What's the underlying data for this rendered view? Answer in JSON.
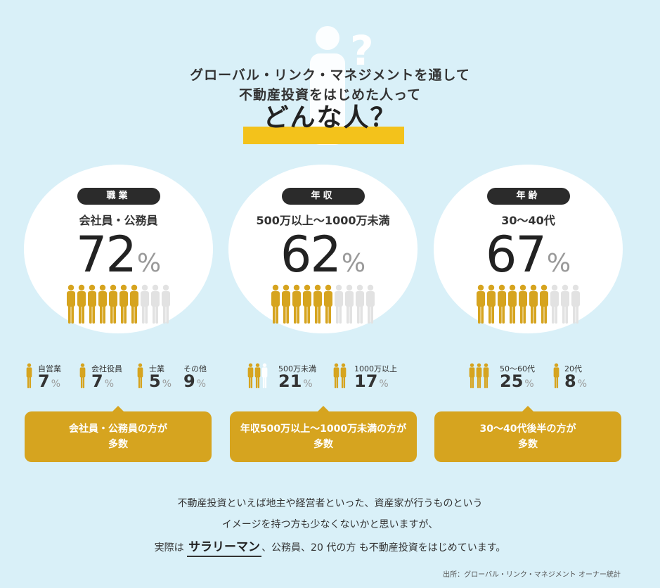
{
  "header": {
    "line1": "グローバル・リンク・マネジメントを通して",
    "line2": "不動産投資をはじめた人って",
    "line3": "どんな人？"
  },
  "colors": {
    "gold": "#d6a41f",
    "gray_person": "#e2e2e2",
    "accent_bar": "#f3c21b",
    "background": "#d9f0f8"
  },
  "stats": [
    {
      "label": "職業",
      "subtitle": "会社員・公務員",
      "value": "72",
      "unit": "%",
      "filled_people": 7,
      "total_people": 10,
      "breakdown": [
        {
          "label": "自営業",
          "value": "7",
          "unit": "%"
        },
        {
          "label": "会社役員",
          "value": "7",
          "unit": "%"
        },
        {
          "label": "士業",
          "value": "5",
          "unit": "%"
        },
        {
          "label": "その他",
          "value": "9",
          "unit": "%"
        }
      ],
      "callout": [
        "会社員・公務員の方が",
        "多数"
      ]
    },
    {
      "label": "年収",
      "subtitle": "500万以上〜1000万未満",
      "value": "62",
      "unit": "%",
      "filled_people": 6,
      "total_people": 10,
      "breakdown": [
        {
          "label": "500万未満",
          "value": "21",
          "unit": "%"
        },
        {
          "label": "1000万以上",
          "value": "17",
          "unit": "%"
        }
      ],
      "callout": [
        "年収500万以上〜1000万未満の方が",
        "多数"
      ]
    },
    {
      "label": "年齢",
      "subtitle": "30〜40代",
      "value": "67",
      "unit": "%",
      "filled_people": 7,
      "total_people": 10,
      "breakdown": [
        {
          "label": "50〜60代",
          "value": "25",
          "unit": "%"
        },
        {
          "label": "20代",
          "value": "8",
          "unit": "%"
        }
      ],
      "callout": [
        "30〜40代後半の方が",
        "多数"
      ]
    }
  ],
  "description": {
    "line1": "不動産投資といえば地主や経営者といった、資産家が行うものという",
    "line2": "イメージを持つ方も少なくないかと思いますが、",
    "line3_prefix": "実際は ",
    "line3_emphasis": "サラリーマン",
    "line3_suffix": "、公務員、20 代の方 も不動産投資をはじめています。"
  },
  "source": "出所：グローバル・リンク・マネジメント オーナー統計"
}
